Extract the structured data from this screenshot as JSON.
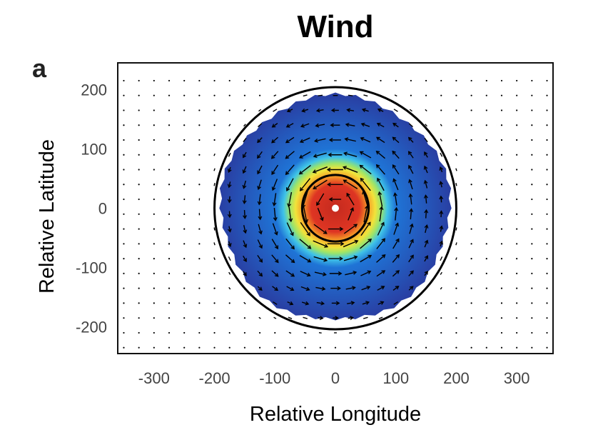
{
  "chart_data": {
    "type": "heatmap",
    "title": "Wind",
    "panel_label": "a",
    "xlabel": "Relative Longitude",
    "ylabel": "Relative Latitude",
    "xlim": [
      -360,
      360
    ],
    "ylim": [
      -245,
      245
    ],
    "x_ticks": [
      -300,
      -200,
      -100,
      0,
      100,
      200,
      300
    ],
    "y_ticks": [
      200,
      100,
      0,
      -100,
      -200
    ],
    "x_tick_labels": [
      "-300",
      "-200",
      "-100",
      "0",
      "100",
      "200",
      "300"
    ],
    "y_tick_labels": [
      "200",
      "100",
      "0",
      "-100",
      "-200"
    ],
    "field": {
      "center": [
        0,
        0
      ],
      "outer_radius": 200,
      "inner_radius": 55,
      "colormap": [
        "#2a3a9e",
        "#1f74d6",
        "#3fc3e8",
        "#9be46a",
        "#f2e33a",
        "#f59a27",
        "#de3523",
        "#c42a1e"
      ]
    },
    "circles": [
      {
        "radius": 200,
        "color": "#000000"
      },
      {
        "radius": 55,
        "color": "#000000"
      }
    ],
    "vectors": {
      "rotation": "counterclockwise",
      "grid_spacing": 25,
      "color": "#000000"
    }
  }
}
